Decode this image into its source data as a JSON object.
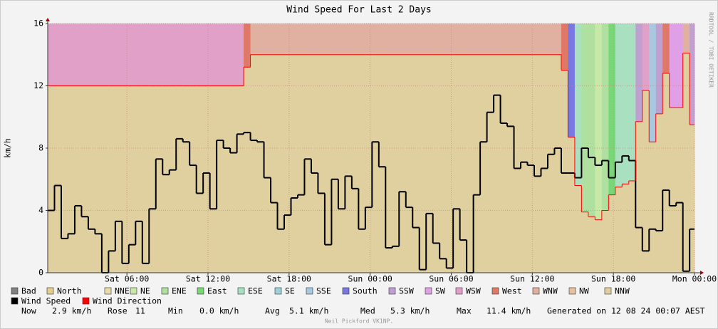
{
  "chart_data": {
    "type": "wind-step",
    "title": "Wind Speed For Last 2 Days",
    "y_label": "km/h",
    "side_text": "RRDTOOL / TOBI OETIKER",
    "credit": "Neil Pickford VK1NP.",
    "ylim": [
      0,
      16
    ],
    "yticks": [
      0,
      4,
      8,
      12,
      16
    ],
    "xlim": [
      0.14,
      48
    ],
    "xticks": [
      {
        "value": 6,
        "label": "Sat 06:00"
      },
      {
        "value": 12,
        "label": "Sat 12:00"
      },
      {
        "value": 18,
        "label": "Sat 18:00"
      },
      {
        "value": 24,
        "label": "Sun 00:00"
      },
      {
        "value": 30,
        "label": "Sun 06:00"
      },
      {
        "value": 36,
        "label": "Sun 12:00"
      },
      {
        "value": 42,
        "label": "Sun 18:00"
      },
      {
        "value": 48,
        "label": "Mon 00:00"
      }
    ],
    "grid": true,
    "fill_below": "#e0d0a0",
    "direction_legend": [
      {
        "name": "Bad",
        "color": "#808080"
      },
      {
        "name": "North",
        "color": "#e0d090"
      },
      {
        "name": "NNE",
        "color": "#e8dca8"
      },
      {
        "name": "NE",
        "color": "#c8e8a8"
      },
      {
        "name": "ENE",
        "color": "#b0e0a0"
      },
      {
        "name": "East",
        "color": "#78d878"
      },
      {
        "name": "ESE",
        "color": "#a8e0c0"
      },
      {
        "name": "SE",
        "color": "#a0d0d8"
      },
      {
        "name": "SSE",
        "color": "#a8c8e0"
      },
      {
        "name": "South",
        "color": "#7878e0"
      },
      {
        "name": "SSW",
        "color": "#c0a0d0"
      },
      {
        "name": "SW",
        "color": "#e0a0e8"
      },
      {
        "name": "WSW",
        "color": "#e0a0c8"
      },
      {
        "name": "West",
        "color": "#e07868"
      },
      {
        "name": "WNW",
        "color": "#e0b0a0"
      },
      {
        "name": "NW",
        "color": "#e8c0a0"
      },
      {
        "name": "NNW",
        "color": "#e0cfa0"
      }
    ],
    "x": [
      0.14,
      0.64,
      1.14,
      1.64,
      2.14,
      2.64,
      3.14,
      3.64,
      4.14,
      4.64,
      5.14,
      5.64,
      6.14,
      6.64,
      7.14,
      7.64,
      8.14,
      8.64,
      9.14,
      9.64,
      10.14,
      10.64,
      11.14,
      11.64,
      12.14,
      12.64,
      13.14,
      13.64,
      14.14,
      14.64,
      15.14,
      15.64,
      16.14,
      16.64,
      17.14,
      17.64,
      18.14,
      18.64,
      19.14,
      19.64,
      20.14,
      20.64,
      21.14,
      21.64,
      22.14,
      22.64,
      23.14,
      23.64,
      24.14,
      24.64,
      25.14,
      25.64,
      26.14,
      26.64,
      27.14,
      27.64,
      28.14,
      28.64,
      29.14,
      29.64,
      30.14,
      30.64,
      31.14,
      31.64,
      32.14,
      32.64,
      33.14,
      33.64,
      34.14,
      34.64,
      35.14,
      35.64,
      36.14,
      36.64,
      37.14,
      37.64,
      38.14,
      38.64,
      39.14,
      39.64,
      40.14,
      40.64,
      41.14,
      41.64,
      42.14,
      42.64,
      43.14,
      43.64,
      44.14,
      44.64,
      45.14,
      45.64,
      46.14,
      46.64,
      47.14,
      47.64
    ],
    "series": [
      {
        "name": "Wind Speed",
        "color": "#000000",
        "values": [
          4.0,
          5.6,
          2.2,
          2.5,
          4.3,
          3.6,
          2.8,
          2.5,
          0,
          1.4,
          3.3,
          0.6,
          1.8,
          3.3,
          0.6,
          4.1,
          7.3,
          6.3,
          6.6,
          8.6,
          8.4,
          6.9,
          5.1,
          6.4,
          4.1,
          8.5,
          8.0,
          7.7,
          8.9,
          9.0,
          8.5,
          8.4,
          6.1,
          4.5,
          2.8,
          3.7,
          4.8,
          5.0,
          7.3,
          6.4,
          5.1,
          1.8,
          6.0,
          4.1,
          6.2,
          5.4,
          2.8,
          4.2,
          8.4,
          6.8,
          1.6,
          1.7,
          5.2,
          4.2,
          2.9,
          0.2,
          3.8,
          1.9,
          0.9,
          0.3,
          4.1,
          2.1,
          0,
          5.0,
          8.4,
          10.3,
          11.4,
          9.6,
          9.4,
          6.7,
          7.1,
          6.9,
          6.2,
          6.7,
          7.6,
          8.0,
          6.4,
          6.4,
          6.1,
          8.0,
          7.4,
          6.9,
          7.2,
          6.1,
          7.1,
          7.5,
          7.2,
          2.9,
          1.4,
          2.8,
          2.7,
          5.3,
          4.3,
          4.5,
          0.1,
          2.8
        ]
      },
      {
        "name": "Wind Direction",
        "color": "#ff0000",
        "values": [
          12,
          12,
          12,
          12,
          12,
          12,
          12,
          12,
          12,
          12,
          12,
          12,
          12,
          12,
          12,
          12,
          12,
          12,
          12,
          12,
          12,
          12,
          12,
          12,
          12,
          12,
          12,
          12,
          12,
          13.2,
          14,
          14,
          14,
          14,
          14,
          14,
          14,
          14,
          14,
          14,
          14,
          14,
          14,
          14,
          14,
          14,
          14,
          14,
          14,
          14,
          14,
          14,
          14,
          14,
          14,
          14,
          14,
          14,
          14,
          14,
          14,
          14,
          14,
          14,
          14,
          14,
          14,
          14,
          14,
          14,
          14,
          14,
          14,
          14,
          14,
          14,
          13,
          8.7,
          5.6,
          3.9,
          3.6,
          3.4,
          4.0,
          5.0,
          5.5,
          5.7,
          5.9,
          9.7,
          11.7,
          8.4,
          10.2,
          12.8,
          10.6,
          10.6,
          14.1,
          9.5
        ]
      }
    ],
    "stats": [
      {
        "label": "Now",
        "value": "2.9 km/h"
      },
      {
        "label": "Rose",
        "value": "11"
      },
      {
        "label": "Min",
        "value": "0.0 km/h"
      },
      {
        "label": "Avg",
        "value": "5.1 km/h"
      },
      {
        "label": "Med",
        "value": "5.3 km/h"
      },
      {
        "label": "Max",
        "value": "11.4 km/h"
      }
    ],
    "generated": "Generated on 12 08 24 00:07 AEST"
  }
}
